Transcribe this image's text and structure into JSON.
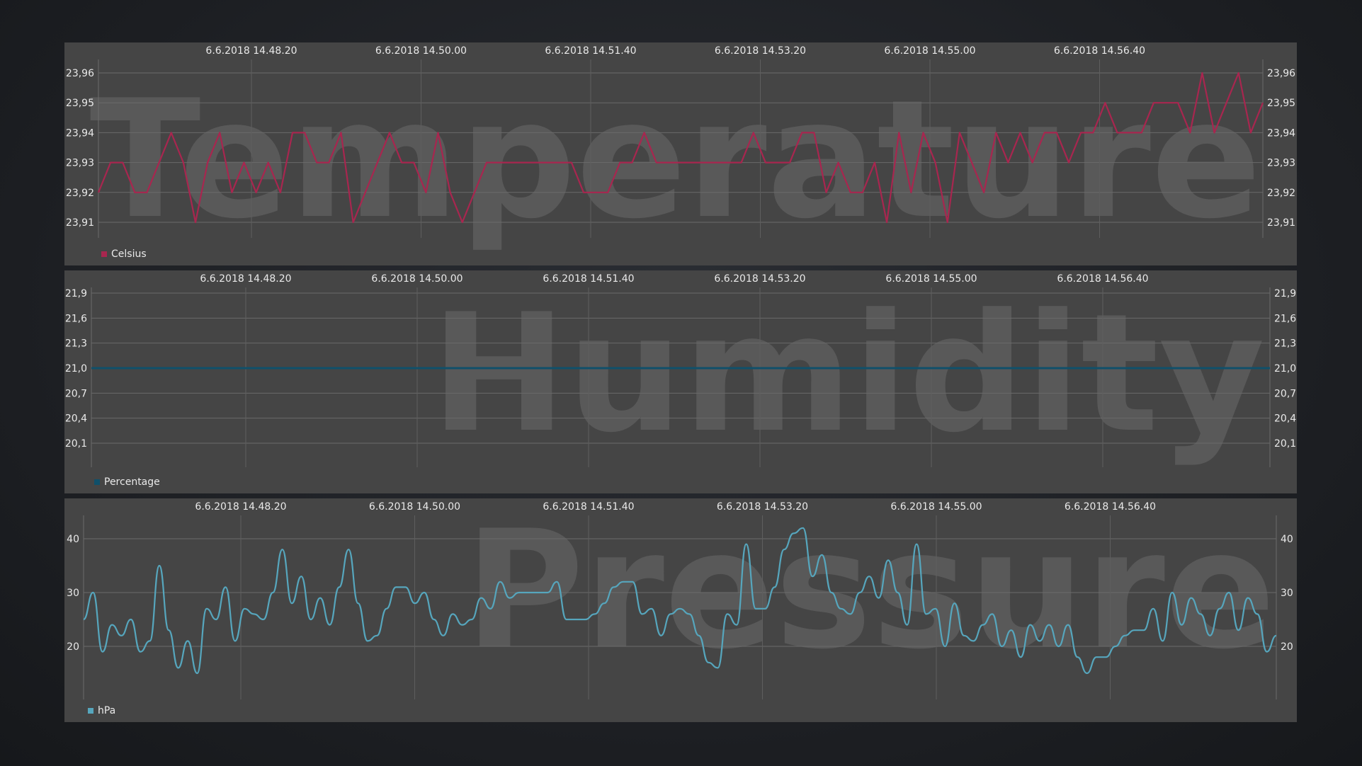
{
  "chart_data": [
    {
      "type": "line",
      "title": "Temperature",
      "x_ticks": [
        "6.6.2018 14.48.20",
        "6.6.2018 14.50.00",
        "6.6.2018 14.51.40",
        "6.6.2018 14.53.20",
        "6.6.2018 14.55.00",
        "6.6.2018 14.56.40"
      ],
      "y_ticks": [
        "23,96",
        "23,95",
        "23,94",
        "23,93",
        "23,92",
        "23,91"
      ],
      "ylim": [
        23.91,
        23.96
      ],
      "grid": true,
      "legend": "bottom-left",
      "color": "#a8264f",
      "series": [
        {
          "name": "Celsius",
          "values": [
            23.92,
            23.93,
            23.93,
            23.92,
            23.92,
            23.93,
            23.94,
            23.93,
            23.91,
            23.93,
            23.94,
            23.92,
            23.93,
            23.92,
            23.93,
            23.92,
            23.94,
            23.94,
            23.93,
            23.93,
            23.94,
            23.91,
            23.92,
            23.93,
            23.94,
            23.93,
            23.93,
            23.92,
            23.94,
            23.92,
            23.91,
            23.92,
            23.93,
            23.93,
            23.93,
            23.93,
            23.93,
            23.93,
            23.93,
            23.93,
            23.92,
            23.92,
            23.92,
            23.93,
            23.93,
            23.94,
            23.93,
            23.93,
            23.93,
            23.93,
            23.93,
            23.93,
            23.93,
            23.93,
            23.94,
            23.93,
            23.93,
            23.93,
            23.94,
            23.94,
            23.92,
            23.93,
            23.92,
            23.92,
            23.93,
            23.91,
            23.94,
            23.92,
            23.94,
            23.93,
            23.91,
            23.94,
            23.93,
            23.92,
            23.94,
            23.93,
            23.94,
            23.93,
            23.94,
            23.94,
            23.93,
            23.94,
            23.94,
            23.95,
            23.94,
            23.94,
            23.94,
            23.95,
            23.95,
            23.95,
            23.94,
            23.96,
            23.94,
            23.95,
            23.96,
            23.94,
            23.95
          ]
        }
      ]
    },
    {
      "type": "line",
      "title": "Humidity",
      "x_ticks": [
        "6.6.2018 14.48.20",
        "6.6.2018 14.50.00",
        "6.6.2018 14.51.40",
        "6.6.2018 14.53.20",
        "6.6.2018 14.55.00",
        "6.6.2018 14.56.40"
      ],
      "y_ticks": [
        "21,9",
        "21,6",
        "21,3",
        "21,0",
        "20,7",
        "20,4",
        "20,1"
      ],
      "ylim": [
        20.1,
        21.9
      ],
      "grid": true,
      "legend": "bottom-left",
      "color": "#10506a",
      "series": [
        {
          "name": "Percentage",
          "values": [
            21.0,
            21.0,
            21.0,
            21.0,
            21.0,
            21.0,
            21.0,
            21.0,
            21.0,
            21.0,
            21.0,
            21.0,
            21.0,
            21.0,
            21.0,
            21.0,
            21.0,
            21.0,
            21.0,
            21.0,
            21.0
          ]
        }
      ]
    },
    {
      "type": "line",
      "title": "Pressure",
      "x_ticks": [
        "6.6.2018 14.48.20",
        "6.6.2018 14.50.00",
        "6.6.2018 14.51.40",
        "6.6.2018 14.53.20",
        "6.6.2018 14.55.00",
        "6.6.2018 14.56.40"
      ],
      "y_ticks": [
        "40",
        "30",
        "20"
      ],
      "ylim": [
        12,
        45
      ],
      "grid": true,
      "legend": "bottom-left",
      "color": "#56a6bd",
      "series": [
        {
          "name": "hPa",
          "values": [
            25,
            30,
            19,
            24,
            22,
            25,
            19,
            21,
            35,
            23,
            16,
            21,
            15,
            27,
            25,
            31,
            21,
            27,
            26,
            25,
            30,
            38,
            28,
            33,
            25,
            29,
            24,
            31,
            38,
            28,
            21,
            22,
            27,
            31,
            31,
            28,
            30,
            25,
            22,
            26,
            24,
            25,
            29,
            27,
            32,
            29,
            30,
            30,
            30,
            30,
            32,
            25,
            25,
            25,
            26,
            28,
            31,
            32,
            32,
            26,
            27,
            22,
            26,
            27,
            26,
            22,
            17,
            16,
            26,
            24,
            39,
            27,
            27,
            31,
            38,
            41,
            42,
            33,
            37,
            30,
            27,
            26,
            30,
            33,
            29,
            36,
            30,
            24,
            39,
            26,
            27,
            20,
            28,
            22,
            21,
            24,
            26,
            20,
            23,
            18,
            24,
            21,
            24,
            20,
            24,
            18,
            15,
            18,
            18,
            20,
            22,
            23,
            23,
            27,
            21,
            30,
            24,
            29,
            26,
            22,
            27,
            30,
            23,
            29,
            26,
            19,
            22
          ]
        }
      ]
    }
  ]
}
